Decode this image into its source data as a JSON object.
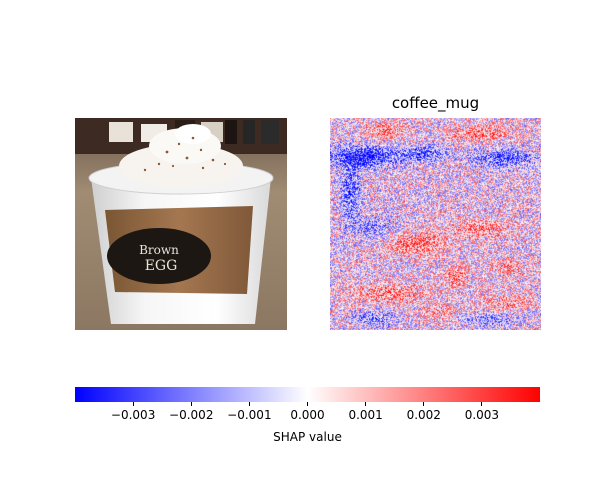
{
  "chart_data": {
    "type": "heatmap",
    "panel_title": "coffee_mug",
    "photo_text": [
      "Brown",
      "EGG"
    ],
    "colorbar": {
      "label": "SHAP value",
      "colormap": [
        "#0000ff",
        "#ffffff",
        "#ff0000"
      ],
      "vmin": -0.004,
      "vmax": 0.004,
      "ticks": [
        -0.003,
        -0.002,
        -0.001,
        0.0,
        0.001,
        0.002,
        0.003
      ],
      "tick_labels": [
        "−0.003",
        "−0.002",
        "−0.001",
        "0.000",
        "0.001",
        "0.002",
        "0.003"
      ]
    }
  }
}
